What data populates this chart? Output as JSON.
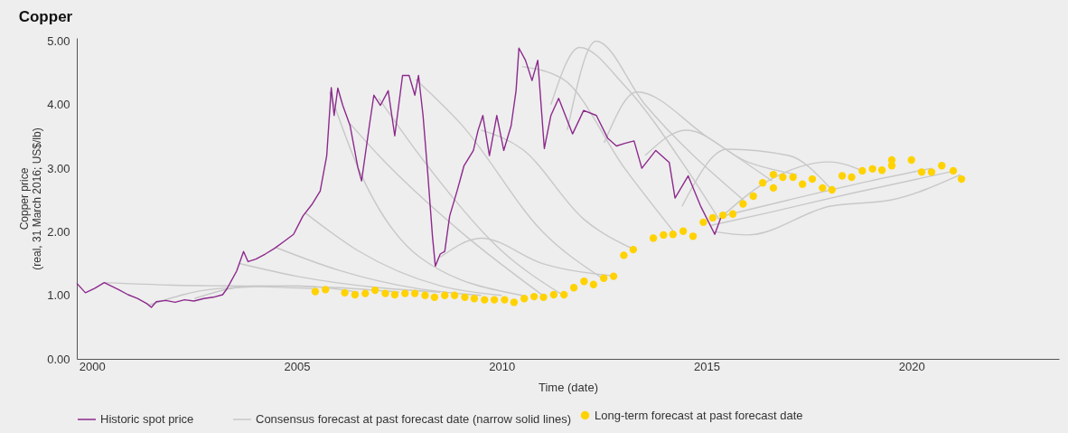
{
  "chart_data": {
    "type": "line",
    "title": "Copper",
    "xlabel": "Time (date)",
    "ylabel": "Copper price\n(real, 31 March 2016; US$/lb)",
    "xlim": [
      1999.63,
      2023.6
    ],
    "xticks": [
      2000,
      2005,
      2010,
      2015,
      2020
    ],
    "ylim": [
      0,
      5.05
    ],
    "yticks": [
      {
        "value": 0,
        "label": "0.00"
      },
      {
        "value": 1,
        "label": "1.00"
      },
      {
        "value": 2,
        "label": "2.00"
      },
      {
        "value": 3,
        "label": "3.00"
      },
      {
        "value": 4,
        "label": "4.00"
      },
      {
        "value": 5,
        "label": "5.00"
      }
    ],
    "grid": false,
    "legend": "bottom",
    "line_style": "solid",
    "series": [
      {
        "name": "Historic spot price",
        "color": "#8c2a8c",
        "x": [
          1999.63,
          1999.84,
          2000.07,
          2000.3,
          2000.65,
          2000.88,
          2001.11,
          2001.34,
          2001.45,
          2001.57,
          2001.8,
          2002.03,
          2002.26,
          2002.49,
          2002.73,
          2002.96,
          2003.19,
          2003.3,
          2003.53,
          2003.7,
          2003.81,
          2004.0,
          2004.23,
          2004.46,
          2004.69,
          2004.92,
          2005.15,
          2005.38,
          2005.57,
          2005.73,
          2005.84,
          2005.91,
          2006.0,
          2006.12,
          2006.3,
          2006.49,
          2006.58,
          2006.77,
          2006.88,
          2007.04,
          2007.23,
          2007.39,
          2007.58,
          2007.74,
          2007.88,
          2007.97,
          2008.08,
          2008.2,
          2008.31,
          2008.38,
          2008.5,
          2008.61,
          2008.73,
          2008.91,
          2009.08,
          2009.31,
          2009.42,
          2009.54,
          2009.7,
          2009.88,
          2010.05,
          2010.23,
          2010.35,
          2010.42,
          2010.58,
          2010.74,
          2010.88,
          2011.04,
          2011.2,
          2011.39,
          2011.73,
          2012.0,
          2012.31,
          2012.59,
          2012.8,
          2013.0,
          2013.23,
          2013.42,
          2013.76,
          2014.09,
          2014.23,
          2014.55,
          2014.85,
          2015.2,
          2015.38
        ],
        "values": [
          1.19,
          1.04,
          1.11,
          1.2,
          1.09,
          1.01,
          0.95,
          0.87,
          0.81,
          0.9,
          0.92,
          0.89,
          0.93,
          0.91,
          0.95,
          0.97,
          1.01,
          1.11,
          1.38,
          1.69,
          1.53,
          1.57,
          1.65,
          1.74,
          1.85,
          1.96,
          2.25,
          2.44,
          2.64,
          3.2,
          4.27,
          3.83,
          4.26,
          3.99,
          3.67,
          3.01,
          2.8,
          3.67,
          4.15,
          3.99,
          4.22,
          3.51,
          4.46,
          4.46,
          4.15,
          4.46,
          3.83,
          2.88,
          1.93,
          1.46,
          1.65,
          1.69,
          2.25,
          2.64,
          3.04,
          3.28,
          3.59,
          3.83,
          3.2,
          3.83,
          3.28,
          3.67,
          4.22,
          4.89,
          4.7,
          4.38,
          4.7,
          3.31,
          3.83,
          4.1,
          3.54,
          3.91,
          3.83,
          3.47,
          3.35,
          3.39,
          3.43,
          3.0,
          3.28,
          3.09,
          2.53,
          2.88,
          2.41,
          1.96,
          2.28
        ]
      },
      {
        "name": "Consensus forecast at past forecast date (narrow solid lines)",
        "color": "#c8c8c8",
        "x": [
          2000.3,
          2002,
          2004,
          2005.5
        ],
        "values": [
          1.2,
          1.16,
          1.14,
          1.1
        ]
      },
      {
        "color": "#c8c8c8",
        "x": [
          2001.4,
          2003,
          2005,
          2006.5
        ],
        "values": [
          0.85,
          1.1,
          1.15,
          1.05
        ]
      },
      {
        "color": "#c8c8c8",
        "x": [
          2002.5,
          2004,
          2006,
          2007.5
        ],
        "values": [
          0.95,
          1.15,
          1.12,
          1.05
        ]
      },
      {
        "color": "#c8c8c8",
        "x": [
          2003.6,
          2005,
          2007,
          2008.5
        ],
        "values": [
          1.5,
          1.3,
          1.12,
          1.05
        ]
      },
      {
        "color": "#c8c8c8",
        "x": [
          2004.5,
          2006,
          2008,
          2009.5
        ],
        "values": [
          1.75,
          1.4,
          1.1,
          1.0
        ]
      },
      {
        "color": "#c8c8c8",
        "x": [
          2005.2,
          2006.5,
          2008.5,
          2010
        ],
        "values": [
          2.3,
          1.7,
          1.15,
          1.0
        ]
      },
      {
        "color": "#c8c8c8",
        "x": [
          2005.8,
          2006.5,
          2008,
          2010.5
        ],
        "values": [
          4.2,
          3.0,
          1.6,
          1.0
        ]
      },
      {
        "color": "#c8c8c8",
        "x": [
          2006.3,
          2007,
          2009,
          2011
        ],
        "values": [
          3.7,
          3.2,
          2.0,
          1.0
        ]
      },
      {
        "color": "#c8c8c8",
        "x": [
          2007,
          2008,
          2010,
          2011.5
        ],
        "values": [
          4.1,
          3.2,
          1.7,
          1.0
        ]
      },
      {
        "color": "#c8c8c8",
        "x": [
          2007.9,
          2009,
          2011,
          2012.5
        ],
        "values": [
          4.4,
          3.7,
          2.0,
          1.25
        ]
      },
      {
        "color": "#c8c8c8",
        "x": [
          2008.5,
          2009.5,
          2011,
          2012.8
        ],
        "values": [
          1.6,
          1.9,
          1.5,
          1.3
        ]
      },
      {
        "color": "#c8c8c8",
        "x": [
          2009.5,
          2010.5,
          2012,
          2013.3
        ],
        "values": [
          3.6,
          3.3,
          2.2,
          1.7
        ]
      },
      {
        "color": "#c8c8c8",
        "x": [
          2010.5,
          2011.5,
          2013,
          2014.2
        ],
        "values": [
          4.6,
          4.4,
          3.0,
          2.0
        ]
      },
      {
        "color": "#c8c8c8",
        "x": [
          2011.2,
          2011.9,
          2013,
          2014.5,
          2015.3
        ],
        "values": [
          4.0,
          4.9,
          4.3,
          3.0,
          2.2
        ]
      },
      {
        "color": "#c8c8c8",
        "x": [
          2011.6,
          2012.3,
          2013.5,
          2015.9
        ],
        "values": [
          3.6,
          5.0,
          4.0,
          2.5
        ]
      },
      {
        "color": "#c8c8c8",
        "x": [
          2012.5,
          2013.3,
          2015,
          2016.6
        ],
        "values": [
          3.4,
          4.2,
          3.5,
          2.8
        ]
      },
      {
        "color": "#c8c8c8",
        "x": [
          2013.5,
          2014.5,
          2016,
          2017.2
        ],
        "values": [
          3.2,
          3.6,
          3.1,
          2.9
        ]
      },
      {
        "color": "#c8c8c8",
        "x": [
          2014.4,
          2015.5,
          2017,
          2018
        ],
        "values": [
          2.4,
          3.3,
          3.2,
          2.7
        ]
      },
      {
        "color": "#c8c8c8",
        "x": [
          2015.3,
          2016.5,
          2018,
          2018.8
        ],
        "values": [
          2.2,
          2.8,
          3.1,
          2.96
        ]
      },
      {
        "color": "#c8c8c8",
        "x": [
          2015.4,
          2017,
          2019,
          2020.5
        ],
        "values": [
          2.25,
          2.5,
          2.8,
          3.0
        ]
      },
      {
        "color": "#c8c8c8",
        "x": [
          2015.2,
          2016,
          2018,
          2019.5,
          2021.2
        ],
        "values": [
          2.0,
          1.95,
          2.4,
          2.5,
          2.9
        ]
      },
      {
        "color": "#c8c8c8",
        "x": [
          2015.1,
          2016.5,
          2018.5,
          2021.0
        ],
        "values": [
          2.1,
          2.3,
          2.6,
          2.95
        ]
      },
      {
        "name": "Long-term forecast at past forecast date",
        "type": "scatter",
        "marker": "circle",
        "color": "#ffd200",
        "x": [
          2005.45,
          2005.7,
          2006.17,
          2006.42,
          2006.67,
          2006.91,
          2007.16,
          2007.39,
          2007.64,
          2007.88,
          2008.13,
          2008.36,
          2008.61,
          2008.85,
          2009.1,
          2009.33,
          2009.58,
          2009.82,
          2010.07,
          2010.3,
          2010.55,
          2010.79,
          2011.02,
          2011.27,
          2011.52,
          2011.76,
          2012.01,
          2012.24,
          2012.49,
          2012.73,
          2012.98,
          2013.21,
          2013.7,
          2013.95,
          2014.18,
          2014.43,
          2014.67,
          2014.92,
          2015.15,
          2015.4,
          2015.64,
          2015.89,
          2016.14,
          2016.37,
          2016.63,
          2016.63,
          2016.86,
          2017.11,
          2017.34,
          2017.58,
          2017.83,
          2018.06,
          2018.31,
          2018.54,
          2018.8,
          2019.05,
          2019.28,
          2019.52,
          2019.52,
          2020.0,
          2020.25,
          2020.49,
          2020.74,
          2021.02,
          2021.22
        ],
        "values": [
          1.06,
          1.09,
          1.04,
          1.01,
          1.03,
          1.08,
          1.03,
          1.01,
          1.03,
          1.03,
          1.0,
          0.97,
          1.0,
          1.0,
          0.97,
          0.95,
          0.93,
          0.93,
          0.93,
          0.89,
          0.95,
          0.98,
          0.97,
          1.01,
          1.01,
          1.12,
          1.22,
          1.17,
          1.27,
          1.3,
          1.63,
          1.72,
          1.9,
          1.95,
          1.96,
          2.01,
          1.93,
          2.15,
          2.22,
          2.26,
          2.28,
          2.44,
          2.56,
          2.77,
          2.9,
          2.69,
          2.86,
          2.86,
          2.75,
          2.83,
          2.69,
          2.66,
          2.88,
          2.86,
          2.96,
          2.99,
          2.97,
          3.13,
          3.04,
          3.13,
          2.94,
          2.94,
          3.04,
          2.96,
          2.83
        ]
      }
    ]
  }
}
